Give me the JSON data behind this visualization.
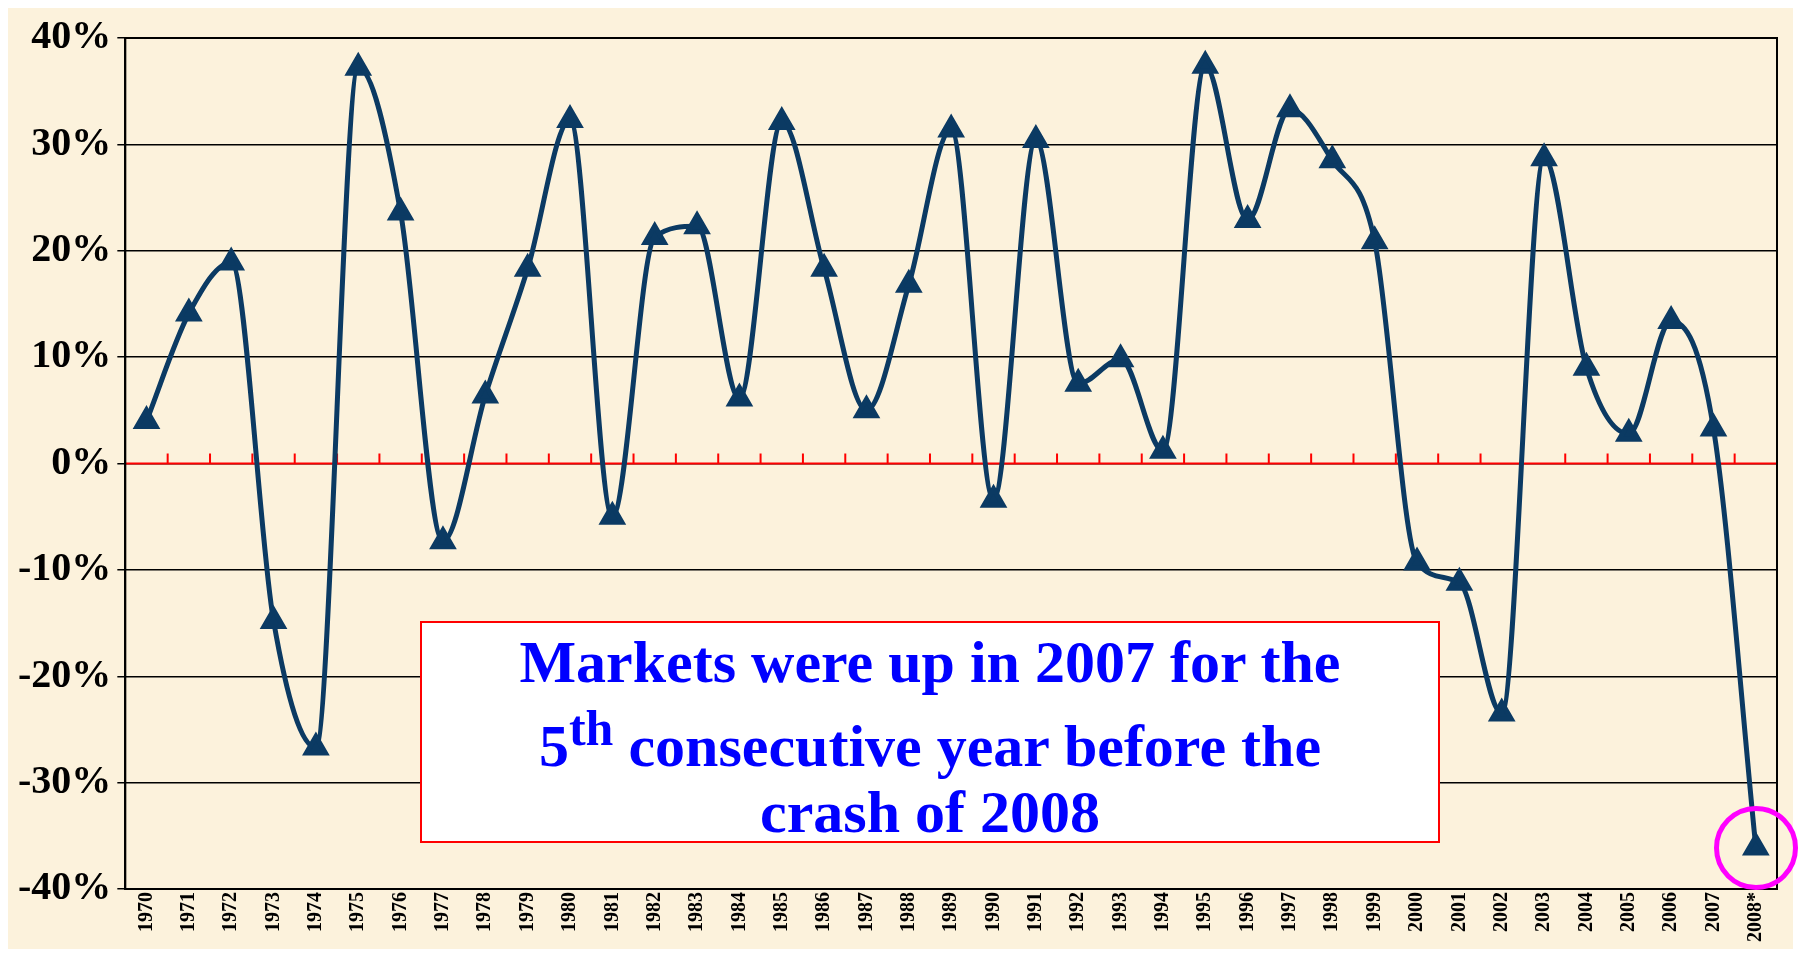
{
  "chart_data": {
    "type": "line",
    "categories": [
      "1970",
      "1971",
      "1972",
      "1973",
      "1974",
      "1975",
      "1976",
      "1977",
      "1978",
      "1979",
      "1980",
      "1981",
      "1982",
      "1983",
      "1984",
      "1985",
      "1986",
      "1987",
      "1988",
      "1989",
      "1990",
      "1991",
      "1992",
      "1993",
      "1994",
      "1995",
      "1996",
      "1997",
      "1998",
      "1999",
      "2000",
      "2001",
      "2002",
      "2003",
      "2004",
      "2005",
      "2006",
      "2007",
      "2008*"
    ],
    "series": [
      {
        "color": "#0b3a63",
        "values": [
          4.0,
          14.1,
          18.9,
          -14.8,
          -26.7,
          37.2,
          23.6,
          -7.3,
          6.4,
          18.3,
          32.3,
          -5.0,
          21.3,
          22.3,
          6.1,
          32.1,
          18.3,
          5.0,
          16.8,
          31.4,
          -3.4,
          30.4,
          7.5,
          9.8,
          1.2,
          37.4,
          22.9,
          33.3,
          28.5,
          20.9,
          -9.3,
          -11.2,
          -23.5,
          28.7,
          9.0,
          2.8,
          13.4,
          3.3,
          -36.1
        ]
      }
    ],
    "ylim": [
      -40,
      40
    ],
    "yticks": [
      {
        "value": -40,
        "label": "-40%"
      },
      {
        "value": -30,
        "label": "-30%"
      },
      {
        "value": -20,
        "label": "-20%"
      },
      {
        "value": -10,
        "label": "-10%"
      },
      {
        "value": 0,
        "label": "0%"
      },
      {
        "value": 10,
        "label": "10%"
      },
      {
        "value": 20,
        "label": "20%"
      },
      {
        "value": 30,
        "label": "30%"
      },
      {
        "value": 40,
        "label": "40%"
      }
    ],
    "grid": "y",
    "legend": false,
    "marker": "triangle",
    "line_style": "solid",
    "ref_lines": [
      {
        "axis": "y",
        "value": 0,
        "color": "#ff0000"
      }
    ],
    "annotations": [
      "Markets were up in 2007 for the 5$^{th}$ consecutive year before the crash of 2008"
    ]
  }
}
